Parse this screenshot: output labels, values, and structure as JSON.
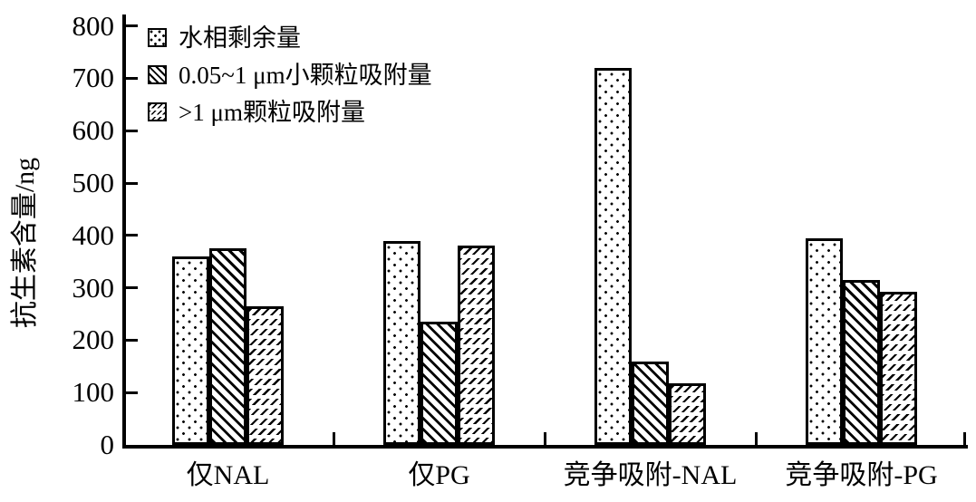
{
  "chart_data": {
    "type": "bar",
    "title": "",
    "xlabel": "",
    "ylabel": "抗生素含量/ng",
    "ylim": [
      0,
      800
    ],
    "yticks": [
      0,
      100,
      200,
      300,
      400,
      500,
      600,
      700,
      800
    ],
    "grid": false,
    "legend_position": "top-left-inside",
    "categories": [
      "仅NAL",
      "仅PG",
      "竞争吸附-NAL",
      "竞争吸附-PG"
    ],
    "series": [
      {
        "name": "水相剩余量",
        "pattern": "dots",
        "values": [
          360,
          390,
          720,
          395
        ]
      },
      {
        "name": "0.05~1 μm小颗粒吸附量",
        "pattern": "dense-diagonal",
        "values": [
          375,
          235,
          160,
          315
        ]
      },
      {
        "name": ">1 μm颗粒吸附量",
        "pattern": "sparse-diagonal",
        "values": [
          265,
          380,
          118,
          292
        ]
      }
    ],
    "colors": {
      "foreground": "#000000",
      "background": "#ffffff"
    }
  }
}
